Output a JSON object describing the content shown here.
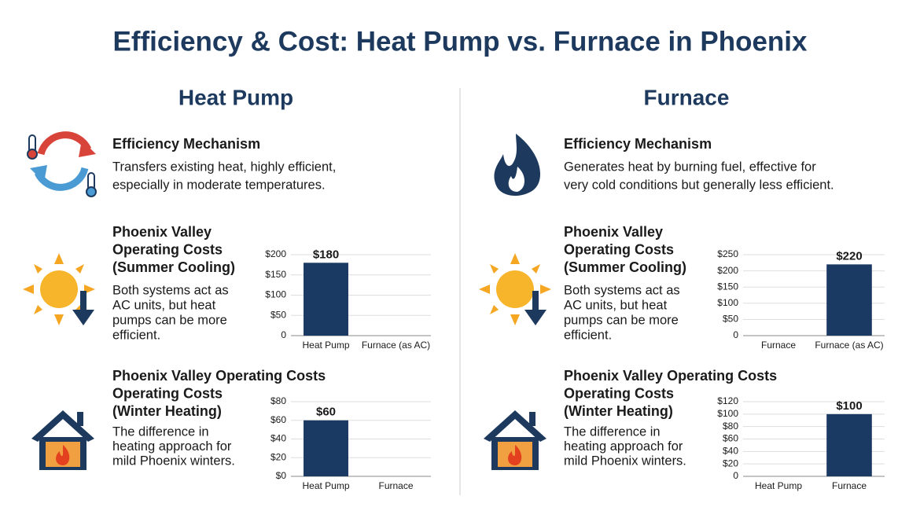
{
  "title": "Efficiency & Cost: Heat Pump vs. Furnace in Phoenix",
  "columns": [
    {
      "heading": "Heat Pump",
      "mechanism": {
        "title": "Efficiency Mechanism",
        "lines": [
          "Transfers existing heat, highly efficient,",
          "especially in moderate temperatures."
        ]
      },
      "summer": {
        "title_lines": [
          "Phoenix Valley",
          "Operating Costs",
          "(Summer Cooling)"
        ],
        "lines": [
          "Both systems act as",
          "AC units, but heat",
          "pumps can be more",
          "efficient."
        ]
      },
      "winter": {
        "title_lines": [
          "Phoenix Valley Operating Costs",
          "Operating Costs",
          "(Winter Heating)"
        ],
        "lines": [
          "The difference in",
          "heating approach for",
          "mild Phoenix winters."
        ]
      }
    },
    {
      "heading": "Furnace",
      "mechanism": {
        "title": "Efficiency Mechanism",
        "lines": [
          "Generates heat by burning fuel, effective for",
          "very cold conditions but generally less efficient."
        ]
      },
      "summer": {
        "title_lines": [
          "Phoenix Valley",
          "Operating Costs",
          "(Summer Cooling)"
        ],
        "lines": [
          "Both systems act as",
          "AC units, but heat",
          "pumps can be more",
          "efficient."
        ]
      },
      "winter": {
        "title_lines": [
          "Phoenix Valley Operating Costs",
          "Operating Costs",
          "(Winter Heating)"
        ],
        "lines": [
          "The difference in",
          "heating approach for",
          "mild Phoenix winters."
        ]
      }
    }
  ],
  "chart_data": [
    {
      "type": "bar",
      "categories": [
        "Heat Pump",
        "Furnace (as AC)"
      ],
      "values": [
        180,
        null
      ],
      "value_labels": [
        "$180",
        null
      ],
      "color": "#1b3a63",
      "ylim": [
        0,
        200
      ],
      "yticks": [
        {
          "value": 200,
          "label": "$200"
        },
        {
          "value": 150,
          "label": "$150"
        },
        {
          "value": 100,
          "label": "$100"
        },
        {
          "value": 50,
          "label": "$50"
        },
        0
      ],
      "grid": true
    },
    {
      "type": "bar",
      "categories": [
        "Furnace",
        "Furnace (as AC)"
      ],
      "values": [
        null,
        220
      ],
      "value_labels": [
        null,
        "$220"
      ],
      "color": "#1b3a63",
      "ylim": [
        0,
        250
      ],
      "yticks": [
        {
          "value": 250,
          "label": "$250"
        },
        {
          "value": 200,
          "label": "$200"
        },
        {
          "value": 150,
          "label": "$150"
        },
        {
          "value": 100,
          "label": "$100"
        },
        {
          "value": 50,
          "label": "$50"
        },
        0
      ],
      "grid": true
    },
    {
      "type": "bar",
      "categories": [
        "Heat Pump",
        "Furnace"
      ],
      "values": [
        60,
        null
      ],
      "value_labels": [
        "$60",
        null
      ],
      "color": "#1b3a63",
      "ylim": [
        0,
        80
      ],
      "yticks": [
        {
          "value": 80,
          "label": "$80"
        },
        {
          "value": 60,
          "label": "$60"
        },
        {
          "value": 40,
          "label": "$40"
        },
        {
          "value": 20,
          "label": "$20"
        },
        {
          "value": 0,
          "label": "$0"
        }
      ],
      "grid": true
    },
    {
      "type": "bar",
      "categories": [
        "Heat Pump",
        "Furnace"
      ],
      "values": [
        null,
        100
      ],
      "value_labels": [
        null,
        "$100"
      ],
      "color": "#1b3a63",
      "ylim": [
        0,
        120
      ],
      "yticks": [
        {
          "value": 120,
          "label": "$120"
        },
        {
          "value": 100,
          "label": "$100"
        },
        {
          "value": 80,
          "label": "$80"
        },
        {
          "value": 60,
          "label": "$60"
        },
        {
          "value": 40,
          "label": "$40"
        },
        {
          "value": 20,
          "label": "$20"
        },
        0
      ],
      "grid": true
    }
  ]
}
